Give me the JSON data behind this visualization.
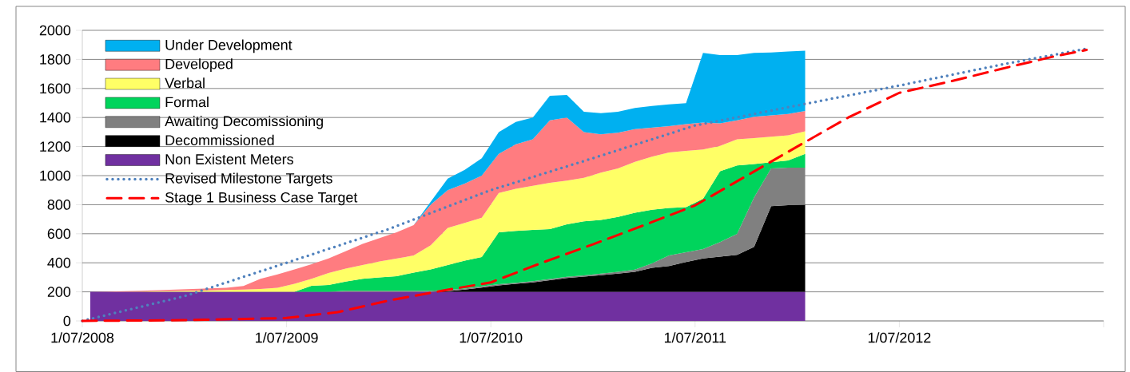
{
  "chart_data": {
    "type": "area",
    "stacked": true,
    "x": [
      "2008-07-15",
      "2008-08-15",
      "2008-09-15",
      "2008-10-15",
      "2008-11-15",
      "2008-12-15",
      "2009-01-15",
      "2009-02-15",
      "2009-03-15",
      "2009-04-15",
      "2009-05-15",
      "2009-06-15",
      "2009-07-15",
      "2009-08-15",
      "2009-09-15",
      "2009-10-15",
      "2009-11-15",
      "2009-12-15",
      "2010-01-15",
      "2010-02-15",
      "2010-03-15",
      "2010-04-15",
      "2010-05-15",
      "2010-06-15",
      "2010-07-15",
      "2010-08-15",
      "2010-09-15",
      "2010-10-15",
      "2010-11-15",
      "2010-12-15",
      "2011-01-15",
      "2011-02-15",
      "2011-03-15",
      "2011-04-15",
      "2011-05-15",
      "2011-06-15",
      "2011-07-15",
      "2011-08-15",
      "2011-09-15",
      "2011-10-15",
      "2011-11-15",
      "2011-12-15",
      "2012-01-15"
    ],
    "series": [
      {
        "name": "Non Existent Meters",
        "color": "#7030a0",
        "values": [
          200,
          200,
          200,
          200,
          200,
          200,
          200,
          200,
          200,
          200,
          200,
          200,
          200,
          200,
          200,
          200,
          200,
          200,
          200,
          200,
          200,
          200,
          200,
          200,
          200,
          200,
          200,
          200,
          200,
          200,
          200,
          200,
          200,
          200,
          200,
          200,
          200,
          200,
          200,
          200,
          200,
          200,
          200
        ]
      },
      {
        "name": "Decommissioned",
        "color": "#000000",
        "values": [
          0,
          0,
          0,
          0,
          0,
          0,
          0,
          0,
          0,
          0,
          0,
          0,
          0,
          0,
          0,
          0,
          0,
          0,
          0,
          0,
          0,
          5,
          15,
          30,
          45,
          55,
          65,
          80,
          95,
          105,
          115,
          126,
          138,
          165,
          178,
          205,
          230,
          243,
          255,
          310,
          590,
          597,
          600
        ]
      },
      {
        "name": "Awaiting Decomissioning",
        "color": "#808080",
        "values": [
          0,
          0,
          0,
          0,
          0,
          0,
          0,
          0,
          0,
          0,
          0,
          0,
          0,
          0,
          0,
          8,
          8,
          8,
          8,
          8,
          8,
          8,
          8,
          8,
          8,
          8,
          8,
          8,
          8,
          8,
          10,
          12,
          15,
          30,
          72,
          67,
          64,
          100,
          144,
          340,
          259,
          258,
          255
        ]
      },
      {
        "name": "Formal",
        "color": "#00d45c",
        "values": [
          0,
          0,
          0,
          0,
          0,
          0,
          0,
          0,
          0,
          0,
          0,
          0,
          0,
          42,
          47,
          62,
          82,
          92,
          100,
          125,
          147,
          172,
          192,
          202,
          357,
          357,
          354,
          344,
          362,
          372,
          370,
          377,
          392,
          370,
          328,
          311,
          346,
          487,
          471,
          230,
          43,
          50,
          95
        ]
      },
      {
        "name": "Verbal",
        "color": "#ffff66",
        "values": [
          0,
          0,
          1,
          2,
          4,
          6,
          8,
          10,
          13,
          16,
          20,
          28,
          55,
          48,
          83,
          90,
          95,
          110,
          122,
          117,
          165,
          255,
          260,
          270,
          270,
          290,
          303,
          318,
          300,
          300,
          325,
          335,
          350,
          365,
          382,
          387,
          340,
          175,
          180,
          178,
          176,
          173,
          155
        ]
      },
      {
        "name": "Developed",
        "color": "#ff7c80",
        "values": [
          0,
          2,
          4,
          6,
          8,
          10,
          12,
          14,
          15,
          24,
          70,
          92,
          100,
          100,
          100,
          120,
          145,
          160,
          180,
          210,
          280,
          260,
          270,
          290,
          270,
          305,
          320,
          430,
          435,
          315,
          265,
          245,
          225,
          200,
          180,
          185,
          185,
          155,
          130,
          147,
          147,
          147,
          140
        ]
      },
      {
        "name": "Under Development",
        "color": "#00b0f0",
        "values": [
          0,
          0,
          0,
          0,
          0,
          0,
          0,
          0,
          0,
          0,
          0,
          0,
          0,
          0,
          0,
          0,
          0,
          0,
          0,
          0,
          20,
          80,
          95,
          120,
          150,
          155,
          150,
          170,
          155,
          140,
          145,
          145,
          145,
          150,
          150,
          143,
          480,
          470,
          450,
          440,
          433,
          430,
          415
        ]
      },
      {
        "name": "Revised Milestone Targets",
        "type": "line",
        "line_style": "dotted",
        "color": "#4f81bd",
        "x": [
          "2008-07",
          "2009-01",
          "2009-07",
          "2010-01",
          "2010-07",
          "2011-01",
          "2011-07",
          "2012-01",
          "2012-07",
          "2013-01",
          "2013-06"
        ],
        "values": [
          0,
          170,
          400,
          632,
          900,
          1120,
          1345,
          1483,
          1620,
          1764,
          1874
        ]
      },
      {
        "name": "Stage 1 Business Case Target",
        "type": "line",
        "line_style": "dashed",
        "color": "#ff0000",
        "x": [
          "2008-07",
          "2009-01",
          "2009-07",
          "2009-10",
          "2010-01",
          "2010-04",
          "2010-07",
          "2010-10",
          "2011-01",
          "2011-04",
          "2011-07",
          "2011-10",
          "2012-01",
          "2012-04",
          "2012-07",
          "2012-10",
          "2013-01",
          "2013-04",
          "2013-06"
        ],
        "values": [
          0,
          5,
          20,
          60,
          140,
          205,
          265,
          400,
          527,
          659,
          795,
          997,
          1200,
          1400,
          1570,
          1648,
          1735,
          1818,
          1865
        ]
      }
    ],
    "xlim": [
      "2008-07",
      "2013-07"
    ],
    "xticks": [
      {
        "value": "2008-07",
        "label": "1/07/2008"
      },
      {
        "value": "2009-07",
        "label": "1/07/2009"
      },
      {
        "value": "2010-07",
        "label": "1/07/2010"
      },
      {
        "value": "2011-07",
        "label": "1/07/2011"
      },
      {
        "value": "2012-07",
        "label": "1/07/2012"
      },
      {
        "value": "2013-07",
        "label": null
      }
    ],
    "ylim": [
      0,
      2000
    ],
    "yticks": [
      0,
      200,
      400,
      600,
      800,
      1000,
      1200,
      1400,
      1600,
      1800,
      2000
    ],
    "grid": "y",
    "legend": "top left",
    "marker": "none"
  }
}
